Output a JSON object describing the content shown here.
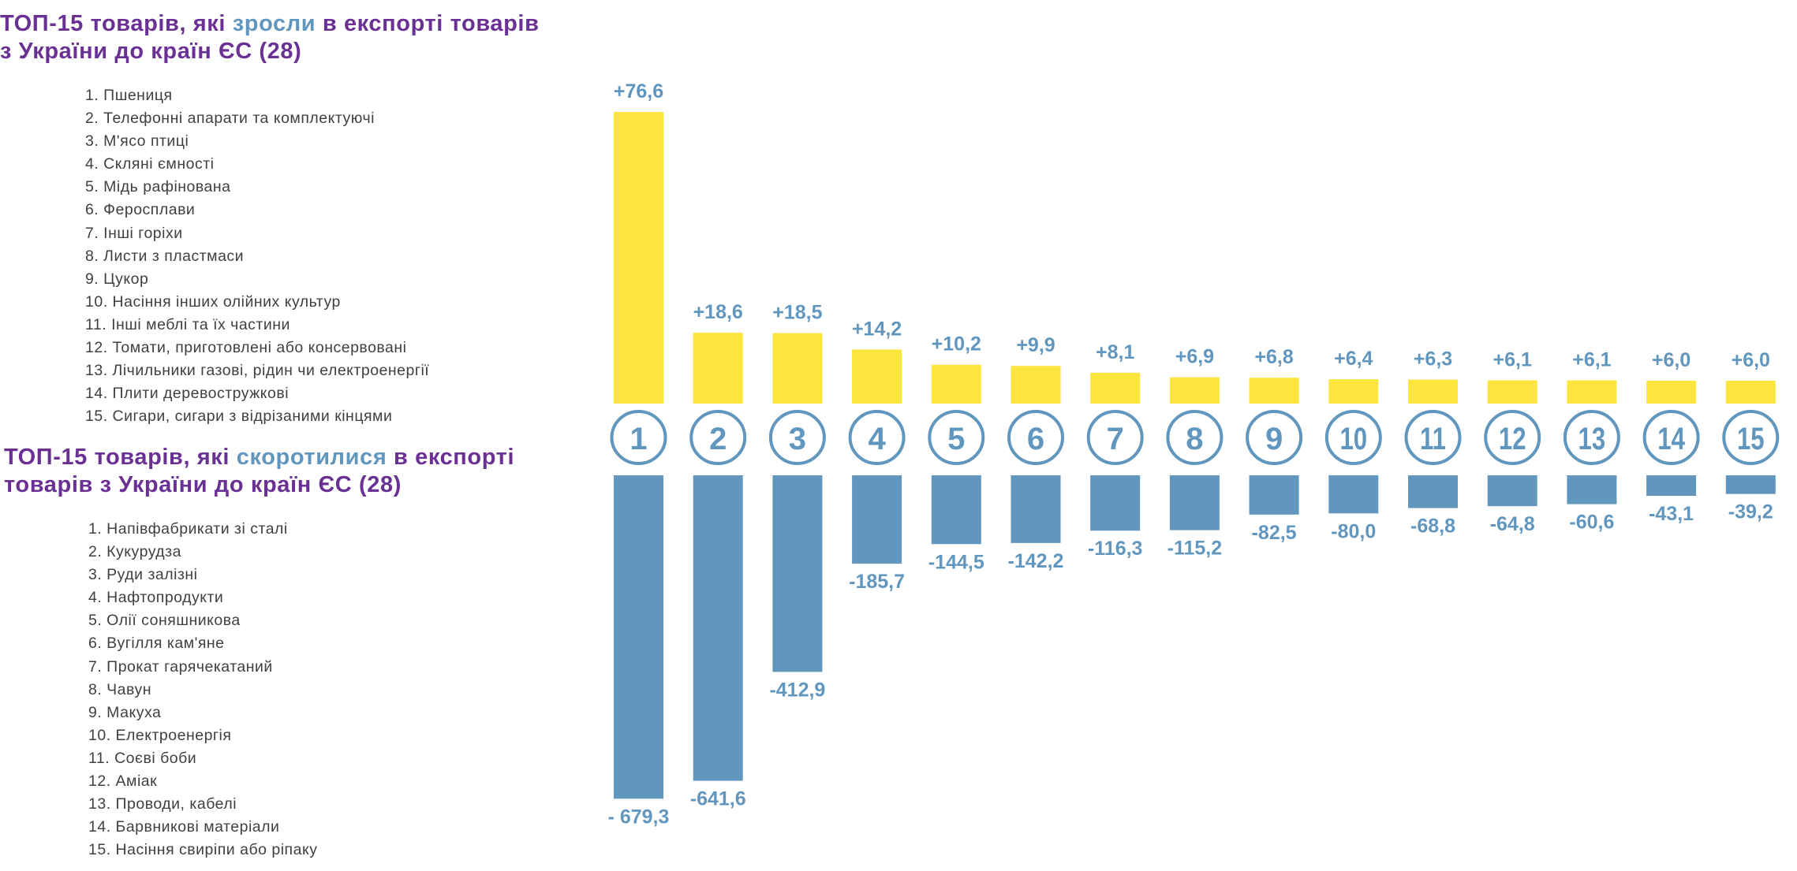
{
  "increase_section": {
    "title_before": "ТОП-15 товарів, які ",
    "title_highlight": "зросли",
    "title_after_line1": " в експорті товарів",
    "title_line2": "з України до країн ЄС (28)",
    "items": [
      "1. Пшениця",
      "2. Телефонні апарати та комплектуючі",
      "3. М'ясо птиці",
      "4. Скляні ємності",
      "5. Мідь рафінована",
      "6. Феросплави",
      "7. Інші горіхи",
      "8. Листи з пластмаси",
      "9. Цукор",
      "10. Насіння інших олійних культур",
      "11. Інші меблі та їх частини",
      "12. Томати, приготовлені або консервовані",
      "13. Лічильники газові, рідин чи електроенергії",
      "14. Плити деревостружкові",
      "15. Сигари, сигари з відрізаними кінцями"
    ]
  },
  "decrease_section": {
    "title_before": "ТОП-15 товарів, які ",
    "title_highlight": "скоротилися",
    "title_after_line1": " в експорті",
    "title_line2": "товарів з України до країн ЄС (28)",
    "items": [
      "1. Напівфабрикати зі сталі",
      "2. Кукурудза",
      "3. Руди залізні",
      "4. Нафтопродукти",
      "5. Олії соняшникова",
      "6. Вугілля кам'яне",
      "7. Прокат гарячекатаний",
      "8. Чавун",
      "9. Макуха",
      "10. Електроенергія",
      "11. Соєві боби",
      "12. Аміак",
      "13. Проводи, кабелі",
      "14. Барвникові матеріали",
      "15. Насіння свиріпи або ріпаку"
    ]
  },
  "colors": {
    "title": "#6A3093",
    "highlight": "#6196BE",
    "increase_bar": "#FBE53E",
    "decrease_bar": "#6196BE",
    "list_text": "#404040"
  },
  "chart_data": {
    "type": "bar",
    "title": "",
    "xlabel": "",
    "ylabel": "",
    "categories": [
      "1",
      "2",
      "3",
      "4",
      "5",
      "6",
      "7",
      "8",
      "9",
      "10",
      "11",
      "12",
      "13",
      "14",
      "15"
    ],
    "series": [
      {
        "name": "зросли",
        "color": "#FBE53E",
        "values": [
          76.6,
          18.6,
          18.5,
          14.2,
          10.2,
          9.9,
          8.1,
          6.9,
          6.8,
          6.4,
          6.3,
          6.1,
          6.1,
          6.0,
          6.0
        ],
        "labels": [
          "+76,6",
          "+18,6",
          "+18,5",
          "+14,2",
          "+10,2",
          "+9,9",
          "+8,1",
          "+6,9",
          "+6,8",
          "+6,4",
          "+6,3",
          "+6,1",
          "+6,1",
          "+6,0",
          "+6,0"
        ]
      },
      {
        "name": "скоротилися",
        "color": "#6196BE",
        "values": [
          -679.3,
          -641.6,
          -412.9,
          -185.7,
          -144.5,
          -142.2,
          -116.3,
          -115.2,
          -82.5,
          -80.0,
          -68.8,
          -64.8,
          -60.6,
          -43.1,
          -39.2
        ],
        "labels": [
          "- 679,3",
          "-641,6",
          "-412,9",
          "-185,7",
          "-144,5",
          "-142,2",
          "-116,3",
          "-115,2",
          "-82,5",
          "-80,0",
          "-68,8",
          "-64,8",
          "-60,6",
          "-43,1",
          "-39,2"
        ]
      }
    ],
    "grid": false,
    "legend": "none"
  }
}
